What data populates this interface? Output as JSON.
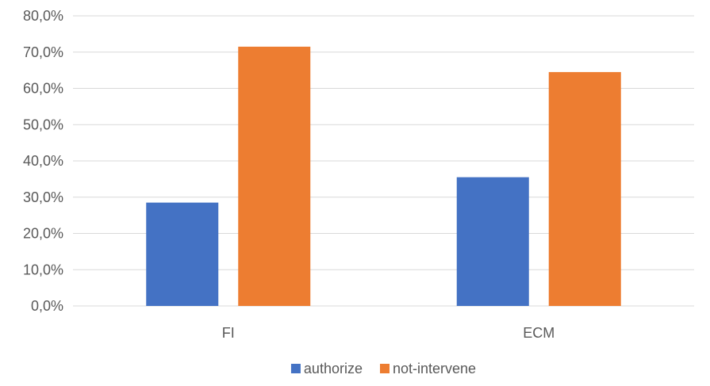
{
  "chart_data": {
    "type": "bar",
    "title": "",
    "xlabel": "",
    "ylabel": "",
    "categories": [
      "FI",
      "ECM"
    ],
    "series": [
      {
        "name": "authorize",
        "values": [
          28.5,
          35.5
        ],
        "color": "#4472C4"
      },
      {
        "name": "not-intervene",
        "values": [
          71.5,
          64.5
        ],
        "color": "#ED7D31"
      }
    ],
    "ylim": [
      0,
      80
    ],
    "yticks": [
      0,
      10,
      20,
      30,
      40,
      50,
      60,
      70,
      80
    ],
    "ytick_labels": [
      "0,0%",
      "10,0%",
      "20,0%",
      "30,0%",
      "40,0%",
      "50,0%",
      "60,0%",
      "70,0%",
      "80,0%"
    ],
    "grid": true,
    "gridline_color": "#D9D9D9",
    "legend_position": "bottom"
  }
}
